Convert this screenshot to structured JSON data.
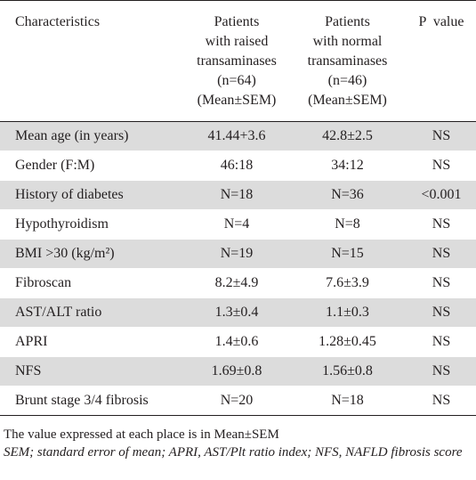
{
  "table": {
    "headers": [
      [
        "Characteristics"
      ],
      [
        "Patients",
        "with raised",
        "transaminases",
        "(n=64)",
        "(Mean±SEM)"
      ],
      [
        "Patients",
        "with normal",
        "transaminases",
        "(n=46)",
        "(Mean±SEM)"
      ],
      [
        "P  value"
      ]
    ],
    "rows": [
      [
        "Mean age (in years)",
        "41.44+3.6",
        "42.8±2.5",
        "NS"
      ],
      [
        "Gender (F:M)",
        "46:18",
        "34:12",
        "NS"
      ],
      [
        "History of diabetes",
        "N=18",
        "N=36",
        "<0.001"
      ],
      [
        "Hypothyroidism",
        "N=4",
        "N=8",
        "NS"
      ],
      [
        "BMI >30 (kg/m²)",
        "N=19",
        "N=15",
        "NS"
      ],
      [
        "Fibroscan",
        "8.2±4.9",
        "7.6±3.9",
        "NS"
      ],
      [
        "AST/ALT ratio",
        "1.3±0.4",
        "1.1±0.3",
        "NS"
      ],
      [
        "APRI",
        "1.4±0.6",
        "1.28±0.45",
        "NS"
      ],
      [
        "NFS",
        "1.69±0.8",
        "1.56±0.8",
        "NS"
      ],
      [
        "Brunt stage 3/4 fibrosis",
        "N=20",
        "N=18",
        "NS"
      ]
    ]
  },
  "footnotes": {
    "line1": "The value expressed at each place is in Mean±SEM",
    "line2": "SEM; standard error of mean; APRI, AST/Plt ratio index; NFS, NAFLD fibrosis score"
  }
}
